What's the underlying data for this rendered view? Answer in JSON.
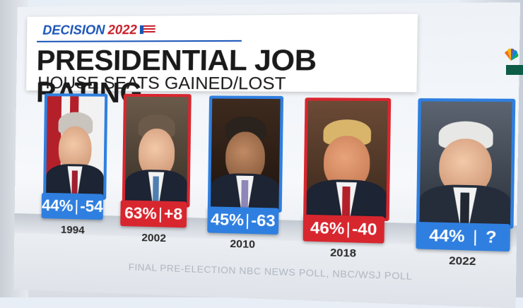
{
  "header": {
    "brand_prefix": "DECISION",
    "brand_year": "2022",
    "title": "PRESIDENTIAL JOB RATING",
    "subtitle": "HOUSE SEATS GAINED/LOST"
  },
  "presidents": [
    {
      "year": "1994",
      "approval": "44%",
      "seats": "-54",
      "party_color": "blue"
    },
    {
      "year": "2002",
      "approval": "63%",
      "seats": "+8",
      "party_color": "red"
    },
    {
      "year": "2010",
      "approval": "45%",
      "seats": "-63",
      "party_color": "blue"
    },
    {
      "year": "2018",
      "approval": "46%",
      "seats": "-40",
      "party_color": "red"
    },
    {
      "year": "2022",
      "approval": "44%",
      "seats": "?",
      "party_color": "blue"
    }
  ],
  "footnote": "FINAL PRE-ELECTION NBC NEWS POLL, NBC/WSJ POLL",
  "colors": {
    "blue": "#2f7fe0",
    "red": "#d8262f",
    "brand_blue": "#1b55b8",
    "brand_red": "#c8202a"
  },
  "icons": {
    "network_logo": "peacock-logo-icon"
  }
}
